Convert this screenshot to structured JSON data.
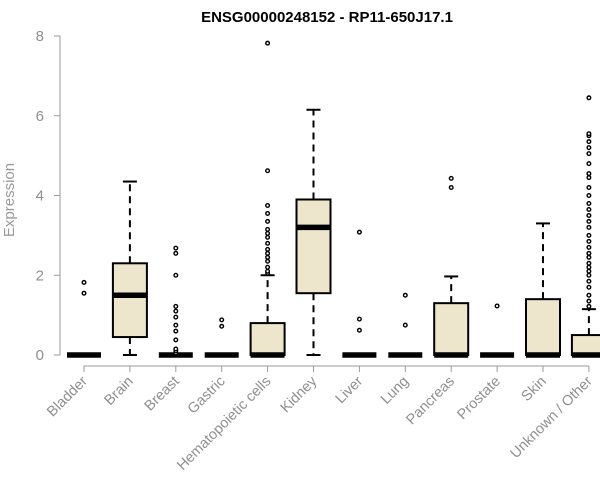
{
  "chart_data": {
    "type": "boxplot",
    "title": "ENSG00000248152 - RP11-650J17.1",
    "ylabel": "Expression",
    "xlabel": "",
    "ylim": [
      0,
      8
    ],
    "yticks": [
      0,
      2,
      4,
      6,
      8
    ],
    "grid": false,
    "box_fill": "#ede6cc",
    "box_stroke": "#000000",
    "axis_color": "#9a9a9a",
    "categories": [
      "Bladder",
      "Brain",
      "Breast",
      "Gastric",
      "Hematopoietic cells",
      "Kidney",
      "Liver",
      "Lung",
      "Pancreas",
      "Prostate",
      "Skin",
      "Unknown / Other"
    ],
    "boxes": [
      {
        "category": "Bladder",
        "whisker_low": 0,
        "q1": 0,
        "median": 0,
        "q3": 0,
        "whisker_high": 0,
        "outliers": [
          1.55,
          1.82
        ]
      },
      {
        "category": "Brain",
        "whisker_low": 0,
        "q1": 0.45,
        "median": 1.5,
        "q3": 2.3,
        "whisker_high": 4.35,
        "outliers": []
      },
      {
        "category": "Breast",
        "whisker_low": 0,
        "q1": 0,
        "median": 0,
        "q3": 0,
        "whisker_high": 0,
        "outliers": [
          0.05,
          0.1,
          0.15,
          0.38,
          0.6,
          0.75,
          0.95,
          1.1,
          1.22,
          2.0,
          2.55,
          2.68
        ]
      },
      {
        "category": "Gastric",
        "whisker_low": 0,
        "q1": 0,
        "median": 0,
        "q3": 0,
        "whisker_high": 0,
        "outliers": [
          0.72,
          0.88
        ]
      },
      {
        "category": "Hematopoietic cells",
        "whisker_low": 0,
        "q1": 0,
        "median": 0,
        "q3": 0.8,
        "whisker_high": 2.0,
        "outliers": [
          2.05,
          2.1,
          2.2,
          2.35,
          2.45,
          2.55,
          2.65,
          2.8,
          2.95,
          3.05,
          3.15,
          3.35,
          3.55,
          3.75,
          4.62,
          7.82
        ]
      },
      {
        "category": "Kidney",
        "whisker_low": 0,
        "q1": 1.55,
        "median": 3.2,
        "q3": 3.9,
        "whisker_high": 6.15,
        "outliers": []
      },
      {
        "category": "Liver",
        "whisker_low": 0,
        "q1": 0,
        "median": 0,
        "q3": 0,
        "whisker_high": 0,
        "outliers": [
          0.62,
          0.9,
          3.08
        ]
      },
      {
        "category": "Lung",
        "whisker_low": 0,
        "q1": 0,
        "median": 0,
        "q3": 0,
        "whisker_high": 0,
        "outliers": [
          0.75,
          1.5
        ]
      },
      {
        "category": "Pancreas",
        "whisker_low": 0,
        "q1": 0,
        "median": 0,
        "q3": 1.3,
        "whisker_high": 1.97,
        "outliers": [
          4.2,
          4.43
        ]
      },
      {
        "category": "Prostate",
        "whisker_low": 0,
        "q1": 0,
        "median": 0,
        "q3": 0,
        "whisker_high": 0,
        "outliers": [
          1.23
        ]
      },
      {
        "category": "Skin",
        "whisker_low": 0,
        "q1": 0,
        "median": 0,
        "q3": 1.4,
        "whisker_high": 3.3,
        "outliers": []
      },
      {
        "category": "Unknown / Other",
        "whisker_low": 0,
        "q1": 0,
        "median": 0,
        "q3": 0.5,
        "whisker_high": 1.15,
        "outliers": [
          1.22,
          1.35,
          1.5,
          1.7,
          1.85,
          2.0,
          2.1,
          2.2,
          2.3,
          2.45,
          2.55,
          2.7,
          2.85,
          3.0,
          3.2,
          3.35,
          3.5,
          3.65,
          3.8,
          4.0,
          4.2,
          4.45,
          4.55,
          4.8,
          5.05,
          5.2,
          5.35,
          5.5,
          5.55,
          6.45
        ]
      }
    ]
  }
}
